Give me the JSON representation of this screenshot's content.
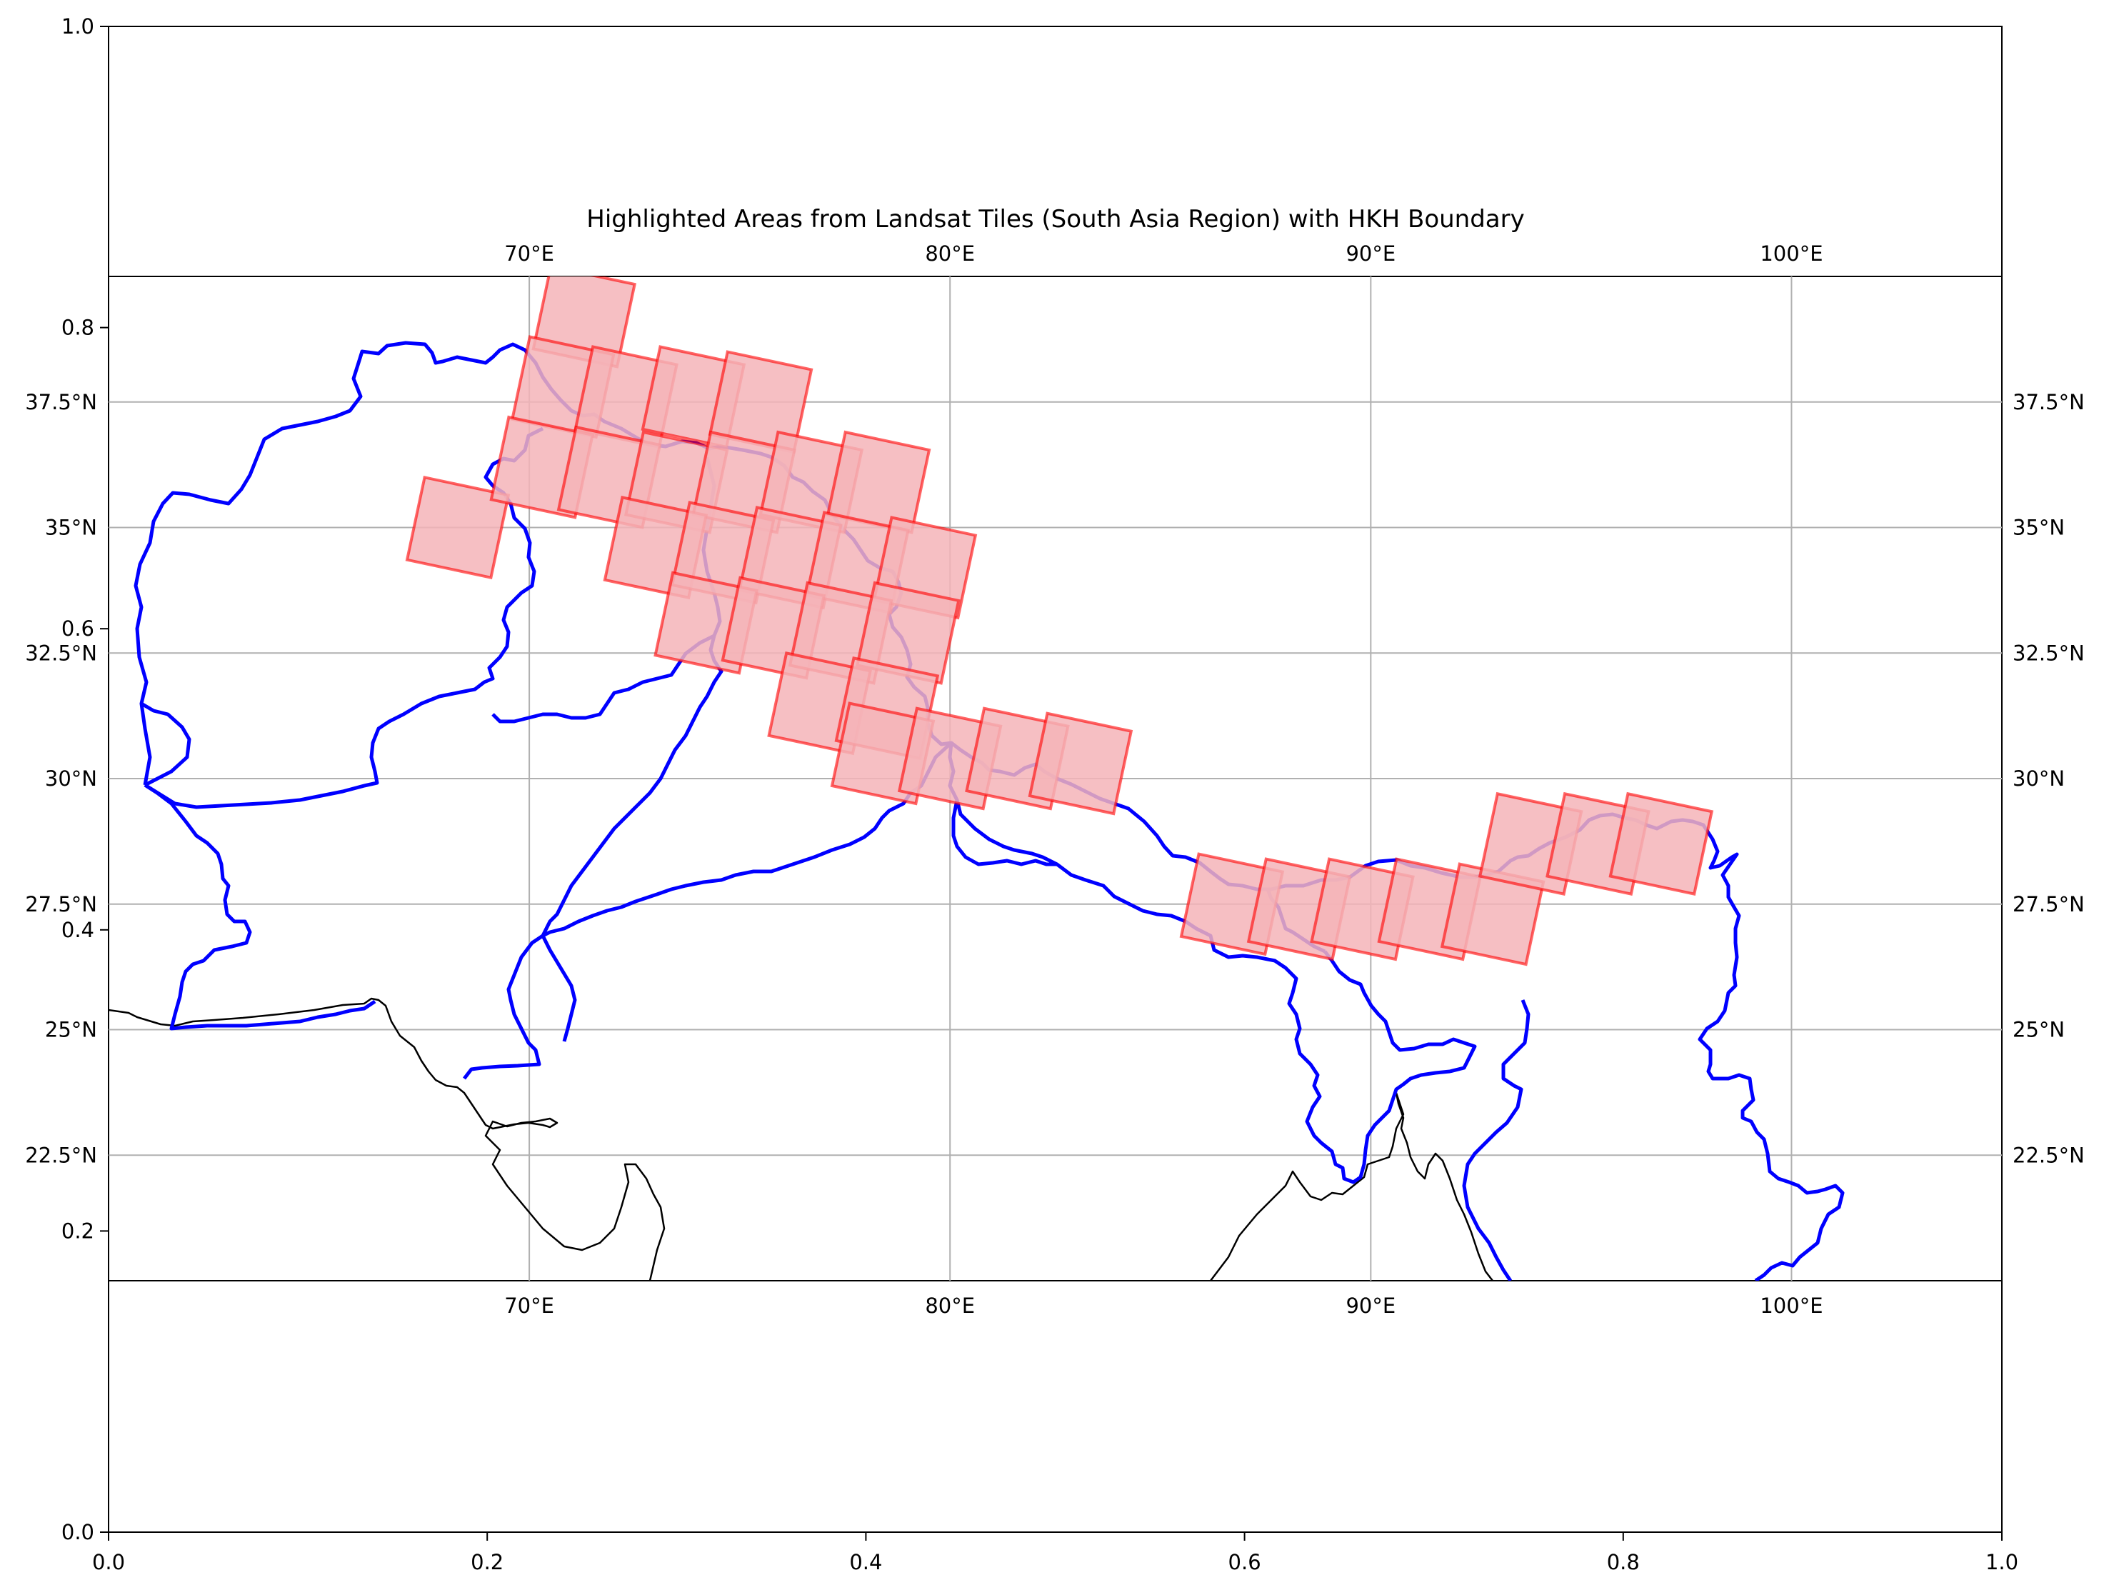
{
  "title": "Highlighted Areas from Landsat Tiles (South Asia Region) with HKH Boundary",
  "outer_axes": {
    "x_ticks": [
      "0.0",
      "0.2",
      "0.4",
      "0.6",
      "0.8",
      "1.0"
    ],
    "y_ticks": [
      "0.0",
      "0.2",
      "0.4",
      "0.6",
      "0.8",
      "1.0"
    ]
  },
  "map": {
    "lon_labels": [
      "70°E",
      "80°E",
      "90°E",
      "100°E"
    ],
    "lat_labels": [
      "22.5°N",
      "25°N",
      "27.5°N",
      "30°N",
      "32.5°N",
      "35°N",
      "37.5°N"
    ],
    "gridlines": true,
    "boundary_color": "#0000ff",
    "tile_fill": "#f4b4b8",
    "tile_edge": "#ff0000",
    "coastline_color": "#000000"
  },
  "chart_data": {
    "type": "map",
    "title": "Highlighted Areas from Landsat Tiles (South Asia Region) with HKH Boundary",
    "extent": {
      "lon": [
        60,
        105
      ],
      "lat": [
        20,
        40
      ]
    },
    "lon_ticks": [
      70,
      80,
      90,
      100
    ],
    "lat_ticks": [
      22.5,
      25,
      27.5,
      30,
      32.5,
      35,
      37.5
    ],
    "tiles": [
      {
        "center": [
          71.3,
          39.2
        ]
      },
      {
        "center": [
          68.3,
          35.0
        ]
      },
      {
        "center": [
          70.8,
          37.8
        ]
      },
      {
        "center": [
          70.3,
          36.2
        ]
      },
      {
        "center": [
          72.3,
          37.6
        ]
      },
      {
        "center": [
          73.9,
          37.6
        ]
      },
      {
        "center": [
          75.5,
          37.5
        ]
      },
      {
        "center": [
          71.9,
          36.0
        ]
      },
      {
        "center": [
          73.5,
          35.9
        ]
      },
      {
        "center": [
          75.1,
          35.9
        ]
      },
      {
        "center": [
          76.7,
          35.9
        ]
      },
      {
        "center": [
          78.3,
          35.9
        ]
      },
      {
        "center": [
          73.0,
          34.6
        ]
      },
      {
        "center": [
          74.6,
          34.5
        ]
      },
      {
        "center": [
          76.2,
          34.4
        ]
      },
      {
        "center": [
          77.8,
          34.3
        ]
      },
      {
        "center": [
          79.4,
          34.2
        ]
      },
      {
        "center": [
          74.2,
          33.1
        ]
      },
      {
        "center": [
          75.8,
          33.0
        ]
      },
      {
        "center": [
          77.4,
          32.9
        ]
      },
      {
        "center": [
          79.0,
          32.9
        ]
      },
      {
        "center": [
          76.9,
          31.5
        ]
      },
      {
        "center": [
          78.5,
          31.4
        ]
      },
      {
        "center": [
          78.4,
          30.5
        ]
      },
      {
        "center": [
          80.0,
          30.4
        ]
      },
      {
        "center": [
          81.6,
          30.4
        ]
      },
      {
        "center": [
          83.1,
          30.3
        ]
      },
      {
        "center": [
          86.7,
          27.5
        ]
      },
      {
        "center": [
          88.3,
          27.4
        ]
      },
      {
        "center": [
          89.8,
          27.4
        ]
      },
      {
        "center": [
          91.4,
          27.4
        ]
      },
      {
        "center": [
          92.9,
          27.3
        ]
      },
      {
        "center": [
          93.8,
          28.7
        ]
      },
      {
        "center": [
          95.4,
          28.7
        ]
      },
      {
        "center": [
          96.9,
          28.7
        ]
      }
    ]
  }
}
